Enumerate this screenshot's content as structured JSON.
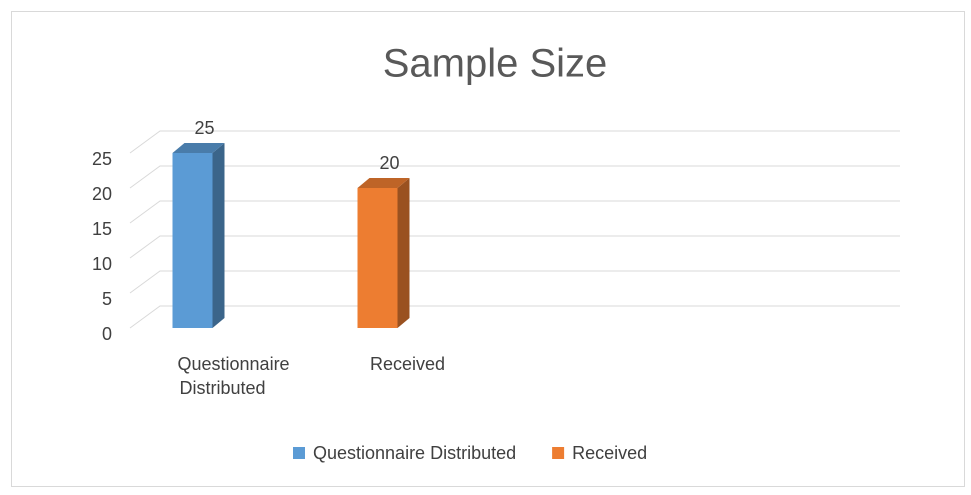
{
  "chart_data": {
    "type": "bar3d",
    "title": "Sample Size",
    "categories": [
      "Questionnaire Distributed",
      "Received"
    ],
    "values": [
      25,
      20
    ],
    "colors": [
      "#5b9bd5",
      "#ed7d31"
    ],
    "ylim": [
      0,
      25
    ],
    "yticks": [
      0,
      5,
      10,
      15,
      20,
      25
    ],
    "grid": true,
    "legend": "bottom"
  }
}
